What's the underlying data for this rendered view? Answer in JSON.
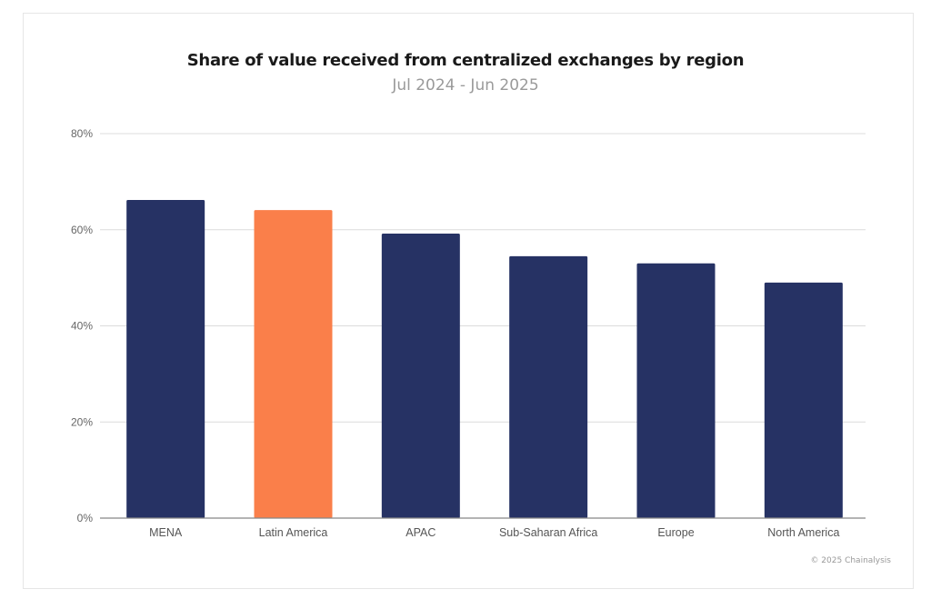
{
  "chart_data": {
    "type": "bar",
    "title": "Share of value received from centralized exchanges by region",
    "subtitle": "Jul 2024 - Jun 2025",
    "xlabel": "",
    "ylabel": "",
    "categories": [
      "MENA",
      "Latin America",
      "APAC",
      "Sub-Saharan Africa",
      "Europe",
      "North America"
    ],
    "values": [
      66.2,
      64.1,
      59.2,
      54.5,
      53.0,
      49.0
    ],
    "highlight_index": 1,
    "ylim": [
      0,
      80
    ],
    "yticks": [
      0,
      20,
      40,
      60,
      80
    ],
    "ytick_labels": [
      "0%",
      "20%",
      "40%",
      "60%",
      "80%"
    ],
    "grid": true,
    "legend": "none",
    "colors": {
      "default": "#263264",
      "highlight": "#fa7f4a",
      "grid": "#dcdcdc",
      "axis": "#888888"
    }
  },
  "footer": {
    "credit": "© 2025 Chainalysis"
  }
}
